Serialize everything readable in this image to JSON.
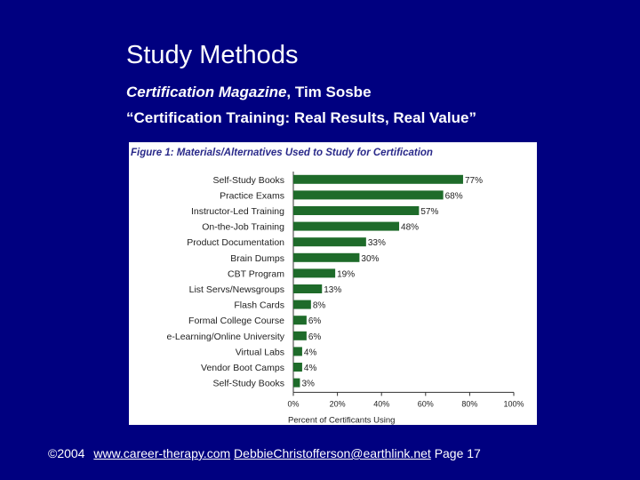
{
  "slide": {
    "title": "Study Methods",
    "source_italic": "Certification Magazine",
    "source_rest": ", Tim Sosbe",
    "article": "“Certification Training: Real Results, Real Value”"
  },
  "footer": {
    "copyright": "©2004",
    "link1": "www.career-therapy.com",
    "link2": "DebbieChristofferson@earthlink.net",
    "page": "Page 17"
  },
  "colors": {
    "background": "#000080",
    "bar": "#1e6b2a",
    "figure_title": "#2a2a8a"
  },
  "chart_data": {
    "type": "bar",
    "orientation": "horizontal",
    "title": "Figure 1: Materials/Alternatives Used to Study for Certification",
    "xlabel": "Percent of Certificants Using",
    "ylabel": "",
    "xlim": [
      0,
      100
    ],
    "x_ticks": [
      "0%",
      "20%",
      "40%",
      "60%",
      "80%",
      "100%"
    ],
    "categories": [
      "Self-Study Books",
      "Practice Exams",
      "Instructor-Led Training",
      "On-the-Job Training",
      "Product Documentation",
      "Brain Dumps",
      "CBT Program",
      "List Servs/Newsgroups",
      "Flash Cards",
      "Formal College Course",
      "e-Learning/Online University",
      "Virtual Labs",
      "Vendor Boot Camps",
      "Self-Study Books"
    ],
    "values": [
      77,
      68,
      57,
      48,
      33,
      30,
      19,
      13,
      8,
      6,
      6,
      4,
      4,
      3
    ],
    "value_labels": [
      "77%",
      "68%",
      "57%",
      "48%",
      "33%",
      "30%",
      "19%",
      "13%",
      "8%",
      "6%",
      "6%",
      "4%",
      "4%",
      "3%"
    ],
    "grid": false,
    "legend": "none"
  }
}
